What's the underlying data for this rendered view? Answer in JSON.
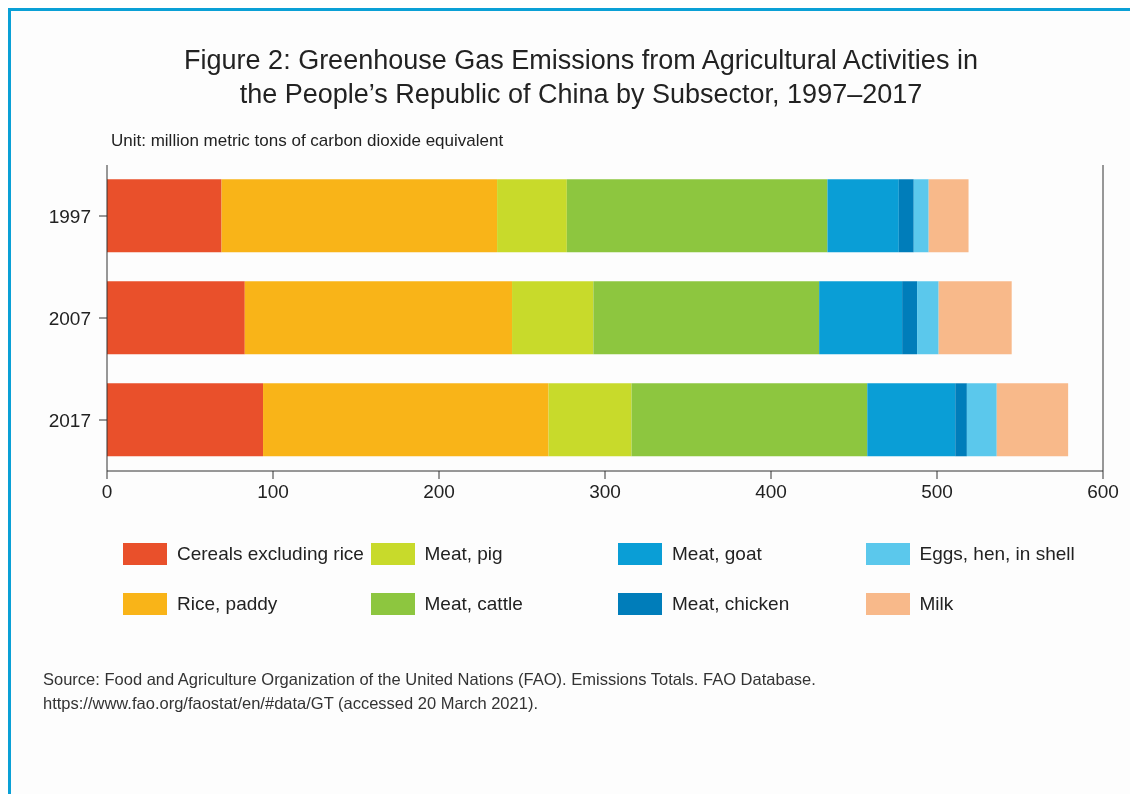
{
  "chart_data": {
    "type": "bar",
    "orientation": "horizontal",
    "stacked": true,
    "title": "Figure 2: Greenhouse Gas Emissions from Agricultural Activities in the People’s Republic of China by Subsector, 1997–2017",
    "subtitle": "Unit: million metric tons of carbon dioxide equivalent",
    "categories": [
      "1997",
      "2007",
      "2017"
    ],
    "series": [
      {
        "name": "Cereals excluding rice",
        "color": "#e9502b",
        "values": [
          69,
          83,
          94
        ]
      },
      {
        "name": "Rice, paddy",
        "color": "#f9b418",
        "values": [
          166,
          161,
          172
        ]
      },
      {
        "name": "Meat, pig",
        "color": "#c8da2b",
        "values": [
          42,
          49,
          50
        ]
      },
      {
        "name": "Meat, cattle",
        "color": "#8dc63f",
        "values": [
          157,
          136,
          142
        ]
      },
      {
        "name": "Meat, goat",
        "color": "#0a9ed6",
        "values": [
          43,
          50,
          53
        ]
      },
      {
        "name": "Meat, chicken",
        "color": "#007dba",
        "values": [
          9,
          9,
          7
        ]
      },
      {
        "name": "Eggs, hen, in shell",
        "color": "#5bc8ec",
        "values": [
          9,
          13,
          18
        ]
      },
      {
        "name": "Milk",
        "color": "#f8b98a",
        "values": [
          24,
          44,
          43
        ]
      }
    ],
    "xlim": [
      0,
      600
    ],
    "xticks": [
      0,
      100,
      200,
      300,
      400,
      500,
      600
    ],
    "grid": false,
    "legend": "bottom",
    "annotations": [
      "Source: Food and Agriculture Organization of the United Nations (FAO). Emissions Totals. FAO Database.\nhttps://www.fao.org/faostat/en/#data/GT (accessed 20 March 2021)."
    ]
  }
}
